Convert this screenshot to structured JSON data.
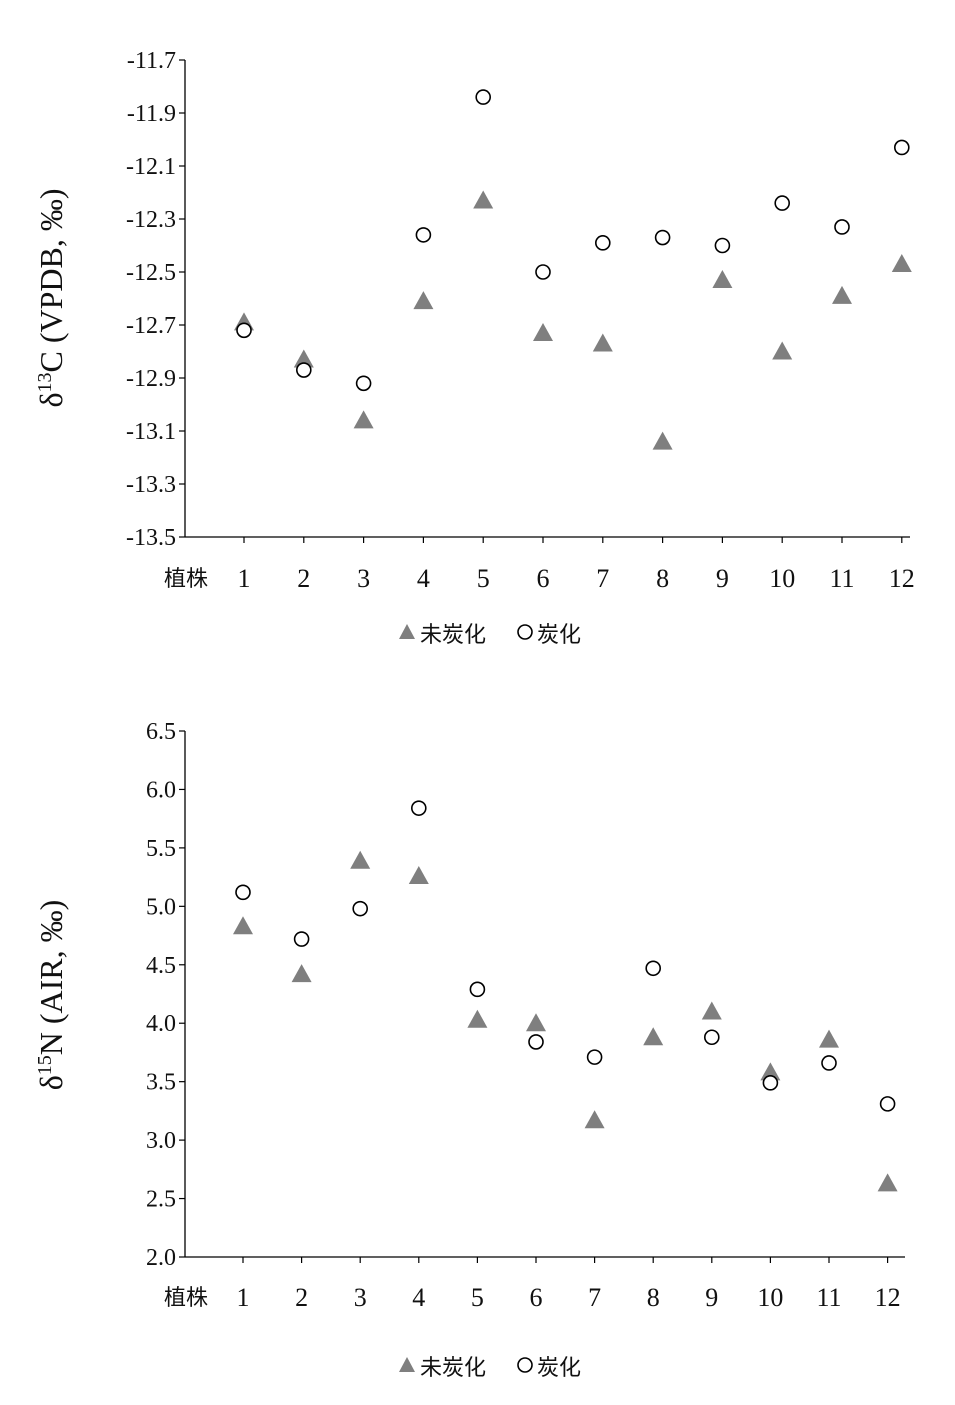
{
  "chart_data": [
    {
      "type": "scatter",
      "ylabel": "δ13C (VPDB, ‰)",
      "ylabel_parts": {
        "pre": "δ",
        "sup": "13",
        "post": "C (VPDB, ‰)"
      },
      "x_prefix": "植株",
      "categories": [
        "1",
        "2",
        "3",
        "4",
        "5",
        "6",
        "7",
        "8",
        "9",
        "10",
        "11",
        "12"
      ],
      "ylim": [
        -13.5,
        -11.7
      ],
      "yticks": [
        "-11.7",
        "-11.9",
        "-12.1",
        "-12.3",
        "-12.5",
        "-12.7",
        "-12.9",
        "-13.1",
        "-13.3",
        "-13.5"
      ],
      "legend_position": "bottom",
      "series": [
        {
          "name": "未炭化",
          "marker": "triangle",
          "color": "#7f7f7f",
          "values": [
            -12.69,
            -12.83,
            -13.06,
            -12.61,
            -12.23,
            -12.73,
            -12.77,
            -13.14,
            -12.53,
            -12.8,
            -12.59,
            -12.47
          ]
        },
        {
          "name": "炭化",
          "marker": "circle",
          "color": "#000000",
          "values": [
            -12.72,
            -12.87,
            -12.92,
            -12.36,
            -11.84,
            -12.5,
            -12.39,
            -12.37,
            -12.4,
            -12.24,
            -12.33,
            -12.03
          ]
        }
      ]
    },
    {
      "type": "scatter",
      "ylabel": "δ15N (AIR, ‰)",
      "ylabel_parts": {
        "pre": "δ",
        "sup": "15",
        "post": "N (AIR, ‰)"
      },
      "x_prefix": "植株",
      "categories": [
        "1",
        "2",
        "3",
        "4",
        "5",
        "6",
        "7",
        "8",
        "9",
        "10",
        "11",
        "12"
      ],
      "ylim": [
        2.0,
        6.5
      ],
      "yticks": [
        "6.5",
        "6.0",
        "5.5",
        "5.0",
        "4.5",
        "4.0",
        "3.5",
        "3.0",
        "2.5",
        "2.0"
      ],
      "legend_position": "bottom",
      "series": [
        {
          "name": "未炭化",
          "marker": "triangle",
          "color": "#7f7f7f",
          "values": [
            4.83,
            4.42,
            5.39,
            5.26,
            4.03,
            4.0,
            3.17,
            3.88,
            4.1,
            3.58,
            3.86,
            2.63
          ]
        },
        {
          "name": "炭化",
          "marker": "circle",
          "color": "#000000",
          "values": [
            5.12,
            4.72,
            4.98,
            5.84,
            4.29,
            3.84,
            3.71,
            4.47,
            3.88,
            3.49,
            3.66,
            3.31
          ]
        }
      ]
    }
  ]
}
